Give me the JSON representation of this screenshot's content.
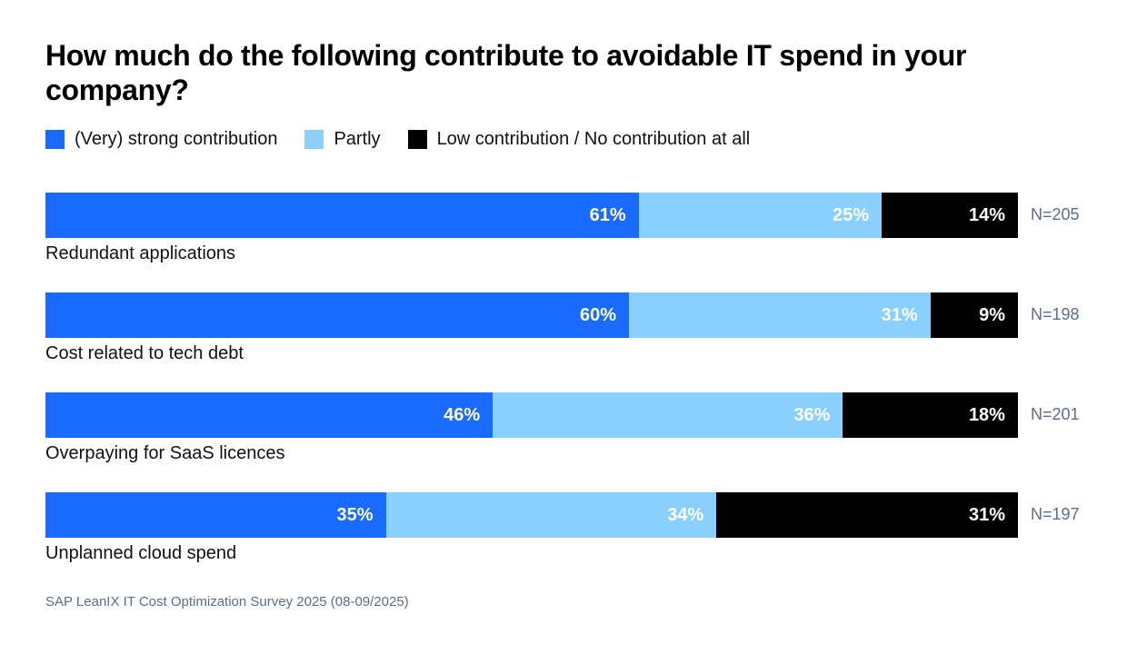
{
  "chart_data": {
    "type": "bar",
    "orientation": "horizontal-stacked",
    "title": "How much do the following contribute to avoidable IT spend in your company?",
    "legend": [
      {
        "name": "(Very) strong contribution",
        "color": "#196bff"
      },
      {
        "name": "Partly",
        "color": "#89d0ff"
      },
      {
        "name": "Low contribution / No contribution at all",
        "color": "#000000"
      }
    ],
    "categories": [
      "Redundant applications",
      "Cost related to tech debt",
      "Overpaying for SaaS licences",
      "Unplanned cloud spend"
    ],
    "series": [
      {
        "name": "(Very) strong contribution",
        "values": [
          61,
          60,
          46,
          35
        ]
      },
      {
        "name": "Partly",
        "values": [
          25,
          31,
          36,
          34
        ]
      },
      {
        "name": "Low contribution / No contribution at all",
        "values": [
          14,
          9,
          18,
          31
        ]
      }
    ],
    "n_labels": [
      "N=205",
      "N=198",
      "N=201",
      "N=197"
    ],
    "unit": "%",
    "xlim": [
      0,
      100
    ],
    "source": "SAP LeanIX IT Cost Optimization Survey 2025 (08-09/2025)"
  }
}
